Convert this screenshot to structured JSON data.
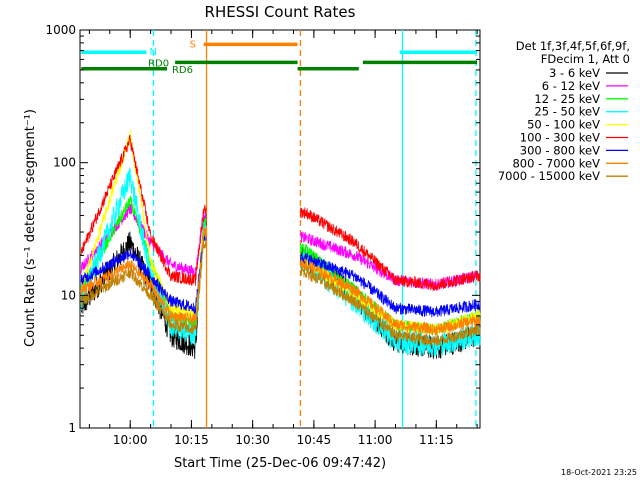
{
  "chart_data": {
    "type": "line",
    "title": "RHESSI Count Rates",
    "xlabel": "Start Time (25-Dec-06 09:47:42)",
    "ylabel": "Count Rate (s⁻¹ detector segment⁻¹)",
    "yscale": "log",
    "ylim": [
      1,
      1000
    ],
    "xlim": [
      "09:47:42",
      "11:25:42"
    ],
    "x_ticks": [
      "10:00",
      "10:15",
      "10:30",
      "10:45",
      "11:00",
      "11:15"
    ],
    "y_ticks": [
      "1",
      "10",
      "100",
      "1000"
    ],
    "timestamp": "18-Oct-2021 23:25",
    "legend_header": [
      "Det 1f,3f,4f,5f,6f,9f,",
      "FDecim 1, Att 0"
    ],
    "gap": [
      "10:18:42",
      "10:40:42"
    ],
    "series": [
      {
        "name": "3 - 6 keV",
        "color": "#000000",
        "x": [
          "09:48",
          "10:00",
          "10:05",
          "10:10",
          "10:16",
          "10:18",
          "10:43",
          "10:55",
          "11:05",
          "11:15",
          "11:25"
        ],
        "values": [
          8,
          25,
          12,
          5,
          4,
          35,
          19,
          10,
          4.5,
          4,
          5
        ]
      },
      {
        "name": "6 - 12 keV",
        "color": "#ff00ff",
        "x": [
          "09:48",
          "10:00",
          "10:05",
          "10:10",
          "10:16",
          "10:18",
          "10:43",
          "10:55",
          "11:05",
          "11:15",
          "11:25"
        ],
        "values": [
          16,
          45,
          25,
          17,
          15,
          40,
          27,
          20,
          13,
          12,
          14
        ]
      },
      {
        "name": "12 - 25 keV",
        "color": "#00ff00",
        "x": [
          "09:48",
          "10:00",
          "10:05",
          "10:10",
          "10:16",
          "10:18",
          "10:43",
          "10:55",
          "11:05",
          "11:15",
          "11:25"
        ],
        "values": [
          11,
          52,
          18,
          7,
          6,
          35,
          22,
          11,
          6,
          5.5,
          7
        ]
      },
      {
        "name": "25 - 50 keV",
        "color": "#00ffff",
        "x": [
          "09:48",
          "10:00",
          "10:05",
          "10:10",
          "10:16",
          "10:18",
          "10:43",
          "10:55",
          "11:05",
          "11:15",
          "11:25"
        ],
        "values": [
          9,
          80,
          14,
          6,
          5,
          30,
          18,
          9,
          4.5,
          4.2,
          5
        ]
      },
      {
        "name": "50 - 100 keV",
        "color": "#ffff00",
        "x": [
          "09:48",
          "10:00",
          "10:05",
          "10:10",
          "10:16",
          "10:18",
          "10:43",
          "10:55",
          "11:05",
          "11:15",
          "11:25"
        ],
        "values": [
          11,
          160,
          18,
          8,
          7,
          30,
          18,
          10,
          6,
          5.5,
          7
        ]
      },
      {
        "name": "100 - 300 keV",
        "color": "#ff0000",
        "x": [
          "09:48",
          "10:00",
          "10:05",
          "10:10",
          "10:16",
          "10:18",
          "10:43",
          "10:55",
          "11:05",
          "11:15",
          "11:25"
        ],
        "values": [
          21,
          150,
          28,
          14,
          13,
          45,
          42,
          25,
          13,
          12,
          14
        ]
      },
      {
        "name": "300 - 800 keV",
        "color": "#0000ff",
        "x": [
          "09:48",
          "10:00",
          "10:05",
          "10:10",
          "10:16",
          "10:18",
          "10:43",
          "10:55",
          "11:05",
          "11:15",
          "11:25"
        ],
        "values": [
          13,
          21,
          14,
          9,
          8,
          28,
          19,
          14,
          8,
          7.5,
          8.5
        ]
      },
      {
        "name": "800 - 7000 keV",
        "color": "#ff8000",
        "x": [
          "09:48",
          "10:00",
          "10:05",
          "10:10",
          "10:16",
          "10:18",
          "10:43",
          "10:55",
          "11:05",
          "11:15",
          "11:25"
        ],
        "values": [
          11,
          17,
          12,
          7,
          6.5,
          30,
          17,
          11,
          6,
          5.5,
          6.5
        ]
      },
      {
        "name": "7000 - 15000 keV",
        "color": "#c08000",
        "x": [
          "09:48",
          "10:00",
          "10:05",
          "10:10",
          "10:16",
          "10:18",
          "10:43",
          "10:55",
          "11:05",
          "11:15",
          "11:25"
        ],
        "values": [
          9,
          15,
          10,
          6,
          5.5,
          25,
          15,
          9,
          5,
          4.5,
          5.5
        ]
      }
    ],
    "markers": [
      {
        "time": "10:05:42",
        "color": "#00ffff",
        "style": "dashed"
      },
      {
        "time": "10:18:42",
        "color": "#ff8000",
        "style": "solid"
      },
      {
        "time": "10:41:42",
        "color": "#ff8000",
        "style": "dashed"
      },
      {
        "time": "11:06:42",
        "color": "#00ffff",
        "style": "solid"
      },
      {
        "time": "11:24:42",
        "color": "#00ffff",
        "style": "dashed"
      }
    ],
    "flag_bars": [
      {
        "label": "N",
        "color": "#00ffff",
        "y": 680,
        "segments": [
          [
            "09:48",
            "10:04"
          ],
          [
            "11:06",
            "11:25"
          ]
        ]
      },
      {
        "label": "S",
        "color": "#ff8000",
        "y": 780,
        "segments": [
          [
            "10:18",
            "10:41"
          ]
        ]
      },
      {
        "label": "RD0",
        "color": "#008000",
        "y": 570,
        "segments": [
          [
            "10:11",
            "10:41"
          ],
          [
            "10:57",
            "11:25"
          ]
        ]
      },
      {
        "label": "RD6",
        "color": "#008000",
        "y": 510,
        "segments": [
          [
            "09:48",
            "10:09"
          ],
          [
            "10:41",
            "10:56"
          ]
        ]
      }
    ]
  }
}
